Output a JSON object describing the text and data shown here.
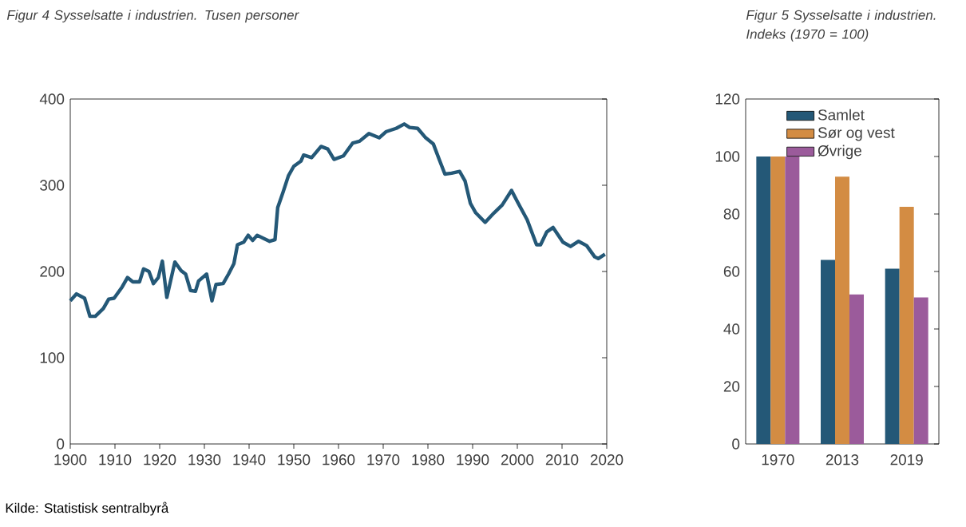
{
  "chart_data": [
    {
      "type": "line",
      "title": "Figur 4 Sysselsatte i industrien. Tusen personer",
      "annotations": [
        "Kilde: Statistisk sentralbyrå"
      ],
      "xlim": [
        1900,
        2020
      ],
      "ylim": [
        0,
        400
      ],
      "xticks": [
        1900,
        1910,
        1920,
        1930,
        1940,
        1950,
        1960,
        1970,
        1980,
        1990,
        2000,
        2010,
        2020
      ],
      "yticks": [
        0,
        100,
        200,
        300,
        400
      ],
      "series": [
        {
          "color": "#245877",
          "x": [
            1900,
            1901.4,
            1903.2,
            1904.4,
            1905.6,
            1907.4,
            1908.6,
            1909.8,
            1911.6,
            1912.8,
            1914,
            1915.5,
            1916.4,
            1917.6,
            1918.6,
            1919.7,
            1920.6,
            1921.6,
            1923.4,
            1924.8,
            1925.8,
            1926.9,
            1928,
            1928.7,
            1930.5,
            1931.7,
            1932.6,
            1934.2,
            1935.4,
            1936.6,
            1937.4,
            1938.8,
            1939.8,
            1940.8,
            1941.8,
            1943.4,
            1944.6,
            1945.8,
            1946.4,
            1947.6,
            1948.8,
            1950,
            1951.6,
            1952.2,
            1954,
            1956.1,
            1957.6,
            1959,
            1961.1,
            1963.2,
            1964.7,
            1966.8,
            1969.1,
            1970.6,
            1972.9,
            1974.7,
            1975.9,
            1977.7,
            1979.5,
            1981.2,
            1982.6,
            1983.8,
            1985.3,
            1987.1,
            1988.3,
            1989.5,
            1990.7,
            1992.8,
            1994.8,
            1996.6,
            1998.7,
            2000.1,
            2002.2,
            2004.3,
            2005.2,
            2006.6,
            2008,
            2010.2,
            2011.9,
            2013.7,
            2015.5,
            2017.3,
            2018.1,
            2019.6
          ],
          "values": [
            166,
            174,
            169,
            148,
            148,
            157,
            168,
            169,
            182,
            193,
            188,
            188,
            203,
            200,
            186,
            193,
            212,
            170,
            211,
            201,
            197,
            178,
            177,
            189,
            197,
            166,
            185,
            186,
            197,
            209,
            231,
            234,
            242,
            236,
            242,
            238,
            235,
            237,
            274,
            292,
            311,
            322,
            328,
            335,
            332,
            345,
            342,
            330,
            334,
            349,
            351,
            360,
            355,
            362,
            366,
            371,
            367,
            366,
            355,
            348,
            329,
            313,
            314,
            316,
            305,
            279,
            268,
            257,
            268,
            277,
            294,
            280,
            260,
            231,
            231,
            246,
            251,
            234,
            229,
            235,
            230,
            217,
            215,
            220
          ]
        }
      ]
    },
    {
      "type": "bar",
      "title": "Figur 5 Sysselsatte i industrien. Indeks (1970 = 100)",
      "categories": [
        "1970",
        "2013",
        "2019"
      ],
      "ylim": [
        0,
        120
      ],
      "yticks": [
        0,
        20,
        40,
        60,
        80,
        100,
        120
      ],
      "legend": "top",
      "series": [
        {
          "name": "Samlet",
          "color": "#245877",
          "values": [
            100,
            64,
            61
          ]
        },
        {
          "name": "Sør og vest",
          "color": "#D38C43",
          "values": [
            100,
            93,
            82.5
          ]
        },
        {
          "name": "Øvrige",
          "color": "#9B5B9B",
          "values": [
            100,
            52,
            51
          ]
        }
      ]
    }
  ]
}
